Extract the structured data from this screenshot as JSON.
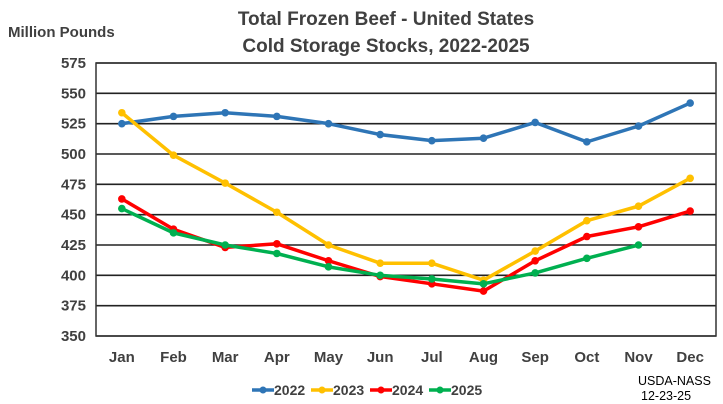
{
  "chart_data": {
    "type": "line",
    "title": [
      "Total Frozen Beef - United States",
      "Cold Storage Stocks, 2022-2025"
    ],
    "ylabel": "Million Pounds",
    "xlabel": "",
    "categories": [
      "Jan",
      "Feb",
      "Mar",
      "Apr",
      "May",
      "Jun",
      "Jul",
      "Aug",
      "Sep",
      "Oct",
      "Nov",
      "Dec"
    ],
    "ylim": [
      350,
      575
    ],
    "yticks": [
      350,
      375,
      400,
      425,
      450,
      475,
      500,
      525,
      550,
      575
    ],
    "grid": true,
    "legend": "bottom",
    "series": [
      {
        "name": "2022",
        "color": "#2E75B6",
        "values": [
          525,
          531,
          534,
          531,
          525,
          516,
          511,
          513,
          526,
          510,
          523,
          542
        ]
      },
      {
        "name": "2023",
        "color": "#FFC000",
        "values": [
          534,
          499,
          476,
          452,
          425,
          410,
          410,
          396,
          420,
          445,
          457,
          480
        ]
      },
      {
        "name": "2024",
        "color": "#FF0000",
        "values": [
          463,
          438,
          423,
          426,
          412,
          399,
          393,
          387,
          412,
          432,
          440,
          453
        ]
      },
      {
        "name": "2025",
        "color": "#00B050",
        "values": [
          455,
          435,
          425,
          418,
          407,
          400,
          397,
          393,
          402,
          414,
          425,
          null
        ]
      }
    ],
    "source_note": [
      "USDA-NASS",
      "12-23-25"
    ]
  }
}
